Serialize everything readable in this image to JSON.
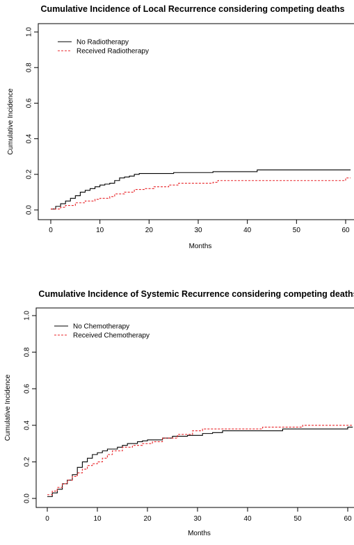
{
  "chart_data": [
    {
      "type": "line",
      "step": true,
      "title": "Cumulative Incidence of Local Recurrence considering competing deaths",
      "xlabel": "Months",
      "ylabel": "Cumulative Incidence",
      "xlim": [
        0,
        61
      ],
      "ylim": [
        0,
        1.0
      ],
      "xticks": [
        "0",
        "10",
        "20",
        "30",
        "40",
        "50",
        "60"
      ],
      "yticks": [
        "0.0",
        "0.2",
        "0.4",
        "0.6",
        "0.8",
        "1.0"
      ],
      "grid": false,
      "legend_position": "top-left",
      "series": [
        {
          "name": "No Radiotherapy",
          "color": "#000000",
          "dash": "solid",
          "x": [
            0,
            1,
            2,
            3,
            4,
            5,
            6,
            7,
            8,
            9,
            10,
            11,
            12,
            13,
            14,
            15,
            16,
            17,
            18,
            20,
            25,
            33,
            42,
            61
          ],
          "y": [
            0.005,
            0.02,
            0.035,
            0.05,
            0.065,
            0.08,
            0.1,
            0.11,
            0.12,
            0.13,
            0.14,
            0.145,
            0.15,
            0.165,
            0.18,
            0.185,
            0.19,
            0.2,
            0.205,
            0.205,
            0.21,
            0.215,
            0.225,
            0.225
          ]
        },
        {
          "name": "Received Radiotherapy",
          "color": "#e8262a",
          "dash": "dashed",
          "x": [
            0,
            2,
            3,
            5,
            7,
            9,
            10,
            12,
            13,
            15,
            17,
            19,
            21,
            24,
            26,
            33,
            34,
            60,
            61
          ],
          "y": [
            0.005,
            0.015,
            0.025,
            0.04,
            0.05,
            0.06,
            0.065,
            0.075,
            0.09,
            0.1,
            0.115,
            0.12,
            0.13,
            0.14,
            0.15,
            0.155,
            0.165,
            0.18,
            0.18
          ]
        }
      ]
    },
    {
      "type": "line",
      "step": true,
      "title": "Cumulative Incidence of Systemic Recurrence considering competing deaths",
      "xlabel": "Months",
      "ylabel": "Cumulative Incidence",
      "xlim": [
        0,
        61
      ],
      "ylim": [
        0,
        1.0
      ],
      "xticks": [
        "0",
        "10",
        "20",
        "30",
        "40",
        "50",
        "60"
      ],
      "yticks": [
        "0.0",
        "0.2",
        "0.4",
        "0.6",
        "0.8",
        "1.0"
      ],
      "grid": false,
      "legend_position": "top-left",
      "series": [
        {
          "name": "No Chemotherapy",
          "color": "#000000",
          "dash": "solid",
          "x": [
            0,
            1,
            2,
            3,
            4,
            5,
            6,
            7,
            8,
            9,
            10,
            11,
            12,
            14,
            15,
            16,
            18,
            19,
            20,
            23,
            25,
            28,
            31,
            33,
            35,
            47,
            60,
            61
          ],
          "y": [
            0.01,
            0.03,
            0.05,
            0.08,
            0.1,
            0.13,
            0.17,
            0.2,
            0.22,
            0.24,
            0.25,
            0.26,
            0.27,
            0.28,
            0.29,
            0.3,
            0.31,
            0.315,
            0.32,
            0.33,
            0.34,
            0.345,
            0.355,
            0.36,
            0.37,
            0.38,
            0.39,
            0.39
          ]
        },
        {
          "name": "Received Chemotherapy",
          "color": "#e8262a",
          "dash": "dashed",
          "x": [
            0,
            1,
            2,
            3,
            4,
            5,
            6,
            7,
            8,
            9,
            10,
            11,
            12,
            13,
            15,
            17,
            19,
            21,
            23,
            26,
            29,
            31,
            43,
            51,
            61
          ],
          "y": [
            0.02,
            0.04,
            0.06,
            0.08,
            0.1,
            0.12,
            0.14,
            0.16,
            0.18,
            0.19,
            0.2,
            0.22,
            0.24,
            0.26,
            0.28,
            0.29,
            0.3,
            0.31,
            0.33,
            0.35,
            0.37,
            0.38,
            0.39,
            0.4,
            0.4
          ]
        }
      ]
    }
  ]
}
